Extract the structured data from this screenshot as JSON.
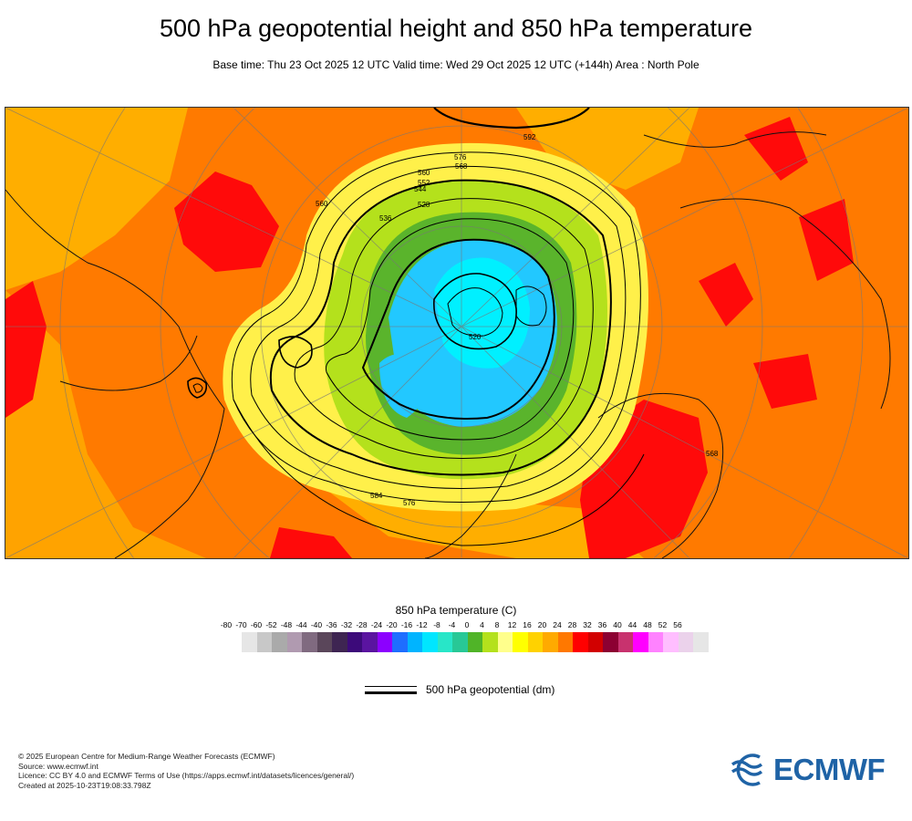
{
  "header": {
    "title": "500 hPa geopotential height and 850 hPa temperature",
    "subtitle": "Base time: Thu 23 Oct 2025 12 UTC Valid time: Wed 29 Oct 2025 12 UTC (+144h) Area : North Pole"
  },
  "map": {
    "contour_labels": [
      "592",
      "576",
      "568",
      "560",
      "552",
      "544",
      "528",
      "520",
      "584",
      "576",
      "568",
      "560",
      "536"
    ],
    "colors": {
      "warm": "#ff7a00",
      "hot": "#ff0a0a",
      "mild": "#ffae00",
      "cool": "#fff04a",
      "cold": "#b4e11c",
      "colder": "#5ab42c",
      "frigid": "#22c8ff",
      "deep": "#00f0ff"
    }
  },
  "legend": {
    "temperature_title": "850 hPa temperature (C)",
    "ticks": [
      "-80",
      "-70",
      "-60",
      "-52",
      "-48",
      "-44",
      "-40",
      "-36",
      "-32",
      "-28",
      "-24",
      "-20",
      "-16",
      "-12",
      "-8",
      "-4",
      "0",
      "4",
      "8",
      "12",
      "16",
      "20",
      "24",
      "28",
      "32",
      "36",
      "40",
      "44",
      "48",
      "52",
      "56"
    ],
    "swatch_colors": [
      "#e6e6e6",
      "#c8c8c8",
      "#aaaaaa",
      "#b09ab0",
      "#806a80",
      "#5a465a",
      "#3e2552",
      "#3c0a7a",
      "#5a14a0",
      "#8c00ff",
      "#1e6eff",
      "#00b4ff",
      "#00e6ff",
      "#28e6c8",
      "#28c896",
      "#50b428",
      "#b4e11c",
      "#ffff8c",
      "#ffff00",
      "#ffd200",
      "#ffaa00",
      "#ff7800",
      "#ff0000",
      "#d20000",
      "#8c0032",
      "#c8326e",
      "#ff00ff",
      "#ff82ff",
      "#ffbeff",
      "#ebd2eb",
      "#e6e6e6"
    ],
    "contour_label": "500 hPa geopotential (dm)"
  },
  "credits": {
    "copyright": "© 2025 European Centre for Medium-Range Weather Forecasts (ECMWF)",
    "source": "Source: www.ecmwf.int",
    "licence": "Licence: CC BY 4.0 and ECMWF Terms of Use (https://apps.ecmwf.int/datasets/licences/general/)",
    "created": "Created at 2025-10-23T19:08:33.798Z"
  },
  "logo": {
    "text": "ECMWF",
    "color": "#1f63a6"
  }
}
